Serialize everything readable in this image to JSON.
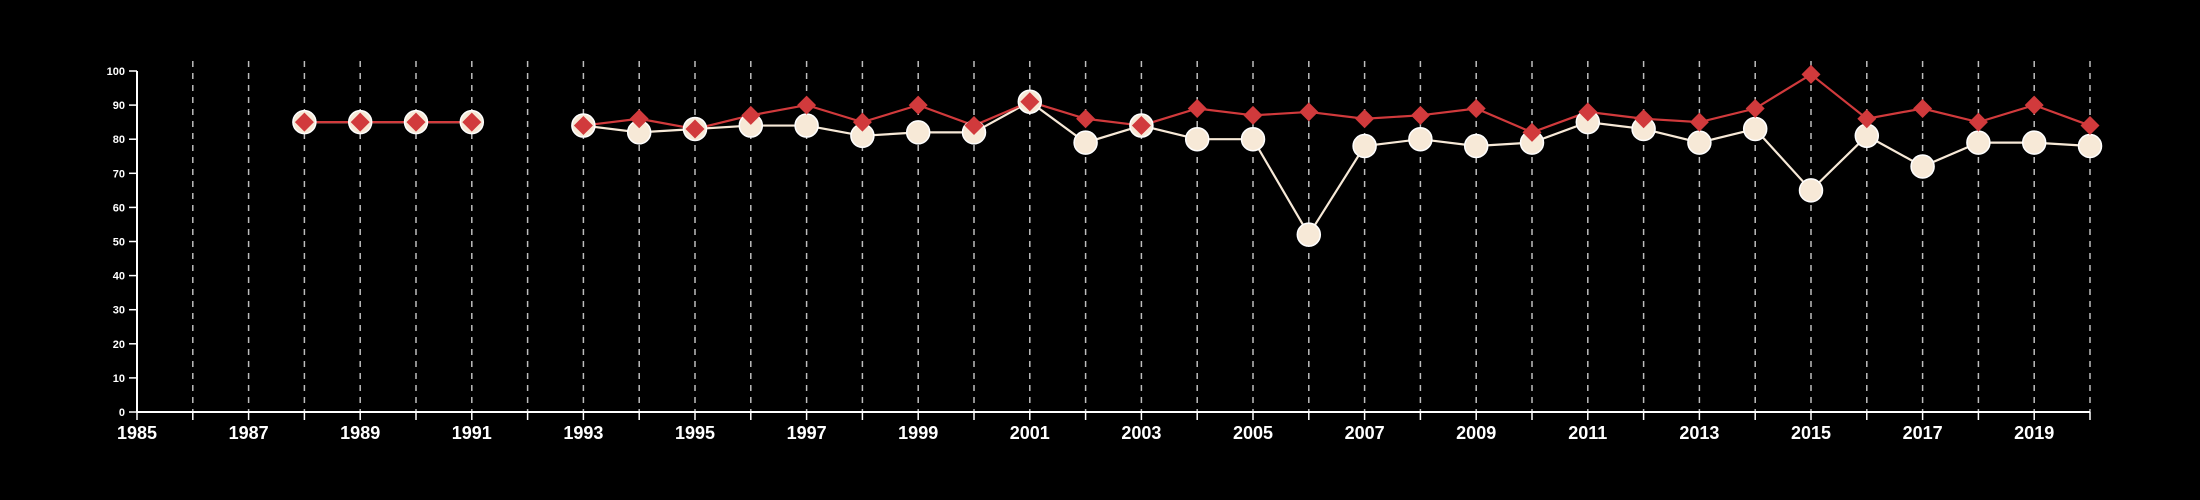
{
  "chart_data": {
    "type": "line",
    "title": "",
    "xlabel": "",
    "ylabel": "",
    "xlim": [
      1985,
      2020
    ],
    "ylim": [
      0,
      100
    ],
    "x_ticks_labeled": [
      1985,
      1987,
      1989,
      1991,
      1993,
      1995,
      1997,
      1999,
      2001,
      2003,
      2005,
      2007,
      2009,
      2011,
      2013,
      2015,
      2017,
      2019
    ],
    "x_ticks_all": [
      1985,
      1986,
      1987,
      1988,
      1989,
      1990,
      1991,
      1992,
      1993,
      1994,
      1995,
      1996,
      1997,
      1998,
      1999,
      2000,
      2001,
      2002,
      2003,
      2004,
      2005,
      2006,
      2007,
      2008,
      2009,
      2010,
      2011,
      2012,
      2013,
      2014,
      2015,
      2016,
      2017,
      2018,
      2019,
      2020
    ],
    "y_ticks": [
      0,
      10,
      20,
      30,
      40,
      50,
      60,
      70,
      80,
      90,
      100
    ],
    "grid": "vertical-dashed",
    "legend": "none",
    "series": [
      {
        "marker": "circle",
        "color": "#f7e9d7",
        "points": [
          [
            1988,
            85
          ],
          [
            1989,
            85
          ],
          [
            1990,
            85
          ],
          [
            1991,
            85
          ],
          [
            1993,
            84
          ],
          [
            1994,
            82
          ],
          [
            1995,
            83
          ],
          [
            1996,
            84
          ],
          [
            1997,
            84
          ],
          [
            1998,
            81
          ],
          [
            1999,
            82
          ],
          [
            2000,
            82
          ],
          [
            2001,
            91
          ],
          [
            2002,
            79
          ],
          [
            2003,
            84
          ],
          [
            2004,
            80
          ],
          [
            2005,
            80
          ],
          [
            2006,
            52
          ],
          [
            2007,
            78
          ],
          [
            2008,
            80
          ],
          [
            2009,
            78
          ],
          [
            2010,
            79
          ],
          [
            2011,
            85
          ],
          [
            2012,
            83
          ],
          [
            2013,
            79
          ],
          [
            2014,
            83
          ],
          [
            2015,
            65
          ],
          [
            2016,
            81
          ],
          [
            2017,
            72
          ],
          [
            2018,
            79
          ],
          [
            2019,
            79
          ],
          [
            2020,
            78
          ]
        ]
      },
      {
        "marker": "diamond",
        "color": "#d13a3c",
        "points": [
          [
            1988,
            85
          ],
          [
            1989,
            85
          ],
          [
            1990,
            85
          ],
          [
            1991,
            85
          ],
          [
            1993,
            84
          ],
          [
            1994,
            86
          ],
          [
            1995,
            83
          ],
          [
            1996,
            87
          ],
          [
            1997,
            90
          ],
          [
            1998,
            85
          ],
          [
            1999,
            90
          ],
          [
            2000,
            84
          ],
          [
            2001,
            91
          ],
          [
            2002,
            86
          ],
          [
            2003,
            84
          ],
          [
            2004,
            89
          ],
          [
            2005,
            87
          ],
          [
            2006,
            88
          ],
          [
            2007,
            86
          ],
          [
            2008,
            87
          ],
          [
            2009,
            89
          ],
          [
            2010,
            82
          ],
          [
            2011,
            88
          ],
          [
            2012,
            86
          ],
          [
            2013,
            85
          ],
          [
            2014,
            89
          ],
          [
            2015,
            99
          ],
          [
            2016,
            86
          ],
          [
            2017,
            89
          ],
          [
            2018,
            85
          ],
          [
            2019,
            90
          ],
          [
            2020,
            84
          ]
        ]
      }
    ]
  }
}
